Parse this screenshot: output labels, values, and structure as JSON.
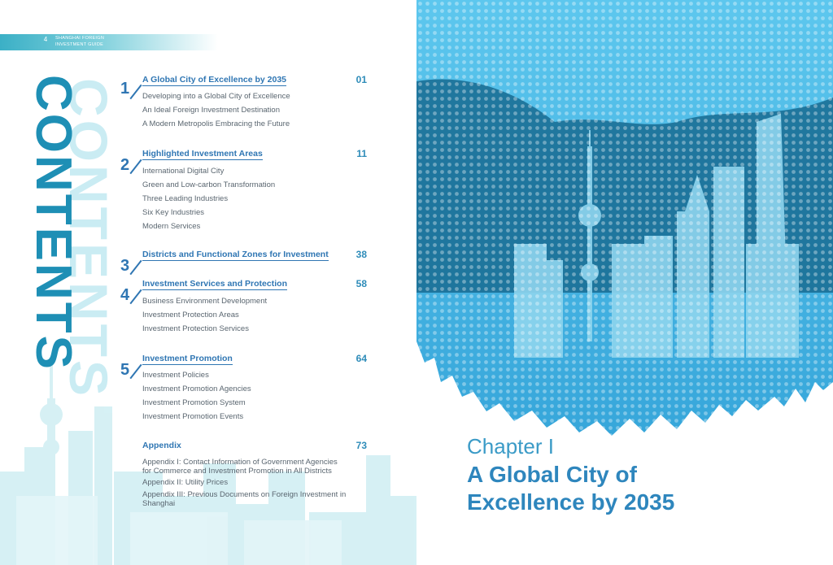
{
  "header": {
    "page_number": "4",
    "publication_line1": "SHANGHAI FOREIGN",
    "publication_line2": "INVESTMENT GUIDE"
  },
  "contents_heading": "CONTENTS",
  "toc": [
    {
      "number": "1",
      "title": "A Global City of Excellence by 2035",
      "page": "01",
      "items": [
        "Developing into a Global City of Excellence",
        "An Ideal Foreign Investment Destination",
        "A Modern Metropolis Embracing the Future"
      ]
    },
    {
      "number": "2",
      "title": "Highlighted Investment Areas",
      "page": "11",
      "items": [
        "International Digital City",
        "Green and Low-carbon Transformation",
        "Three Leading Industries",
        "Six Key Industries",
        "Modern Services"
      ]
    },
    {
      "number": "3",
      "title": "Districts and Functional Zones for Investment",
      "page": "38",
      "items": []
    },
    {
      "number": "4",
      "title": "Investment Services and Protection",
      "page": "58",
      "items": [
        "Business Environment Development",
        "Investment Protection Areas",
        "Investment Protection Services"
      ]
    },
    {
      "number": "5",
      "title": "Investment Promotion",
      "page": "64",
      "items": [
        "Investment Policies",
        "Investment Promotion Agencies",
        "Investment Promotion System",
        "Investment Promotion Events"
      ]
    }
  ],
  "appendix": {
    "title": "Appendix",
    "page": "73",
    "items": [
      "Appendix I: Contact Information of Government Agencies",
      "for Commerce and Investment Promotion in All Districts",
      "Appendix II: Utility Prices",
      "Appendix III: Previous Documents on Foreign Investment in",
      "Shanghai"
    ]
  },
  "chapter": {
    "label": "Chapter I",
    "title_line1": "A Global City of",
    "title_line2": "Excellence by 2035"
  },
  "colors": {
    "accent_blue": "#2f76b3",
    "teal": "#1e8fb5",
    "sky_light": "#5cc4ec",
    "sky_dark": "#1b6f96"
  }
}
